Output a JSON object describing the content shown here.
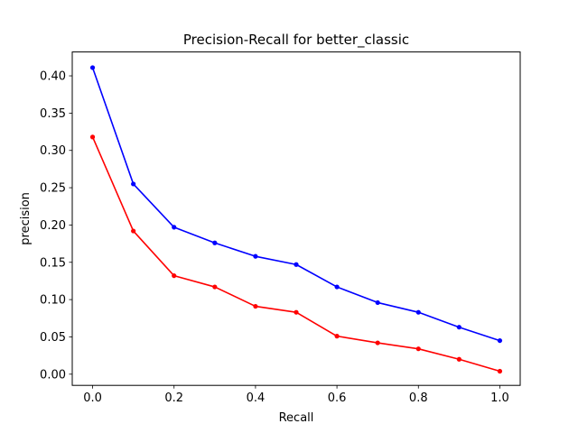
{
  "chart_data": {
    "type": "line",
    "title": "Precision-Recall for better_classic",
    "xlabel": "Recall",
    "ylabel": "precision",
    "xlim": [
      -0.05,
      1.05
    ],
    "ylim": [
      -0.015,
      0.432
    ],
    "xticks": [
      0.0,
      0.2,
      0.4,
      0.6,
      0.8,
      1.0
    ],
    "xtick_labels": [
      "0.0",
      "0.2",
      "0.4",
      "0.6",
      "0.8",
      "1.0"
    ],
    "yticks": [
      0.0,
      0.05,
      0.1,
      0.15,
      0.2,
      0.25,
      0.3,
      0.35,
      0.4
    ],
    "ytick_labels": [
      "0.00",
      "0.05",
      "0.10",
      "0.15",
      "0.20",
      "0.25",
      "0.30",
      "0.35",
      "0.40"
    ],
    "grid": false,
    "legend": false,
    "x": [
      0.0,
      0.1,
      0.2,
      0.3,
      0.4,
      0.5,
      0.6,
      0.7,
      0.8,
      0.9,
      1.0
    ],
    "series": [
      {
        "color": "#0000ff",
        "values": [
          0.411,
          0.255,
          0.197,
          0.176,
          0.158,
          0.147,
          0.117,
          0.096,
          0.083,
          0.063,
          0.045
        ]
      },
      {
        "color": "#ff0000",
        "values": [
          0.318,
          0.192,
          0.132,
          0.117,
          0.091,
          0.083,
          0.051,
          0.042,
          0.034,
          0.02,
          0.004
        ]
      }
    ]
  }
}
